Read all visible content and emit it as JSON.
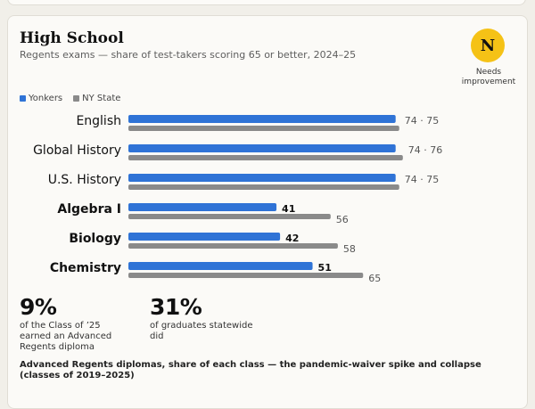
{
  "section": {
    "title": "High School",
    "subtitle": "Regents exams — share of test-takers scoring 65 or better, 2024–25",
    "grade_letter": "N",
    "grade_label": "Needs improvement"
  },
  "legend": {
    "yonkers": "Yonkers",
    "state": "NY State"
  },
  "colors": {
    "yonkers": "#2f73d6",
    "state": "#8a8a8a"
  },
  "chart_data": {
    "type": "bar",
    "categories": [
      "English",
      "Global History",
      "U.S. History",
      "Algebra I",
      "Biology",
      "Chemistry"
    ],
    "bold_categories": [
      "Algebra I",
      "Biology",
      "Chemistry"
    ],
    "series": [
      {
        "name": "Yonkers",
        "values": [
          74,
          74,
          74,
          41,
          42,
          51
        ]
      },
      {
        "name": "NY State",
        "values": [
          75,
          76,
          75,
          56,
          58,
          65
        ]
      }
    ],
    "combined_labels": [
      "74 · 75",
      "74 · 76",
      "74 · 75",
      "",
      "",
      ""
    ],
    "xlim": [
      0,
      100
    ]
  },
  "stats": [
    {
      "value": "9%",
      "text": [
        "of the Class of ’25",
        "earned an Advanced",
        "Regents diploma"
      ]
    },
    {
      "value": "31%",
      "text": [
        "of graduates statewide",
        "did"
      ]
    }
  ],
  "footer": {
    "title": "Advanced Regents diplomas, share of each class — the pandemic-waiver spike and collapse (classes of 2019–2025)"
  }
}
